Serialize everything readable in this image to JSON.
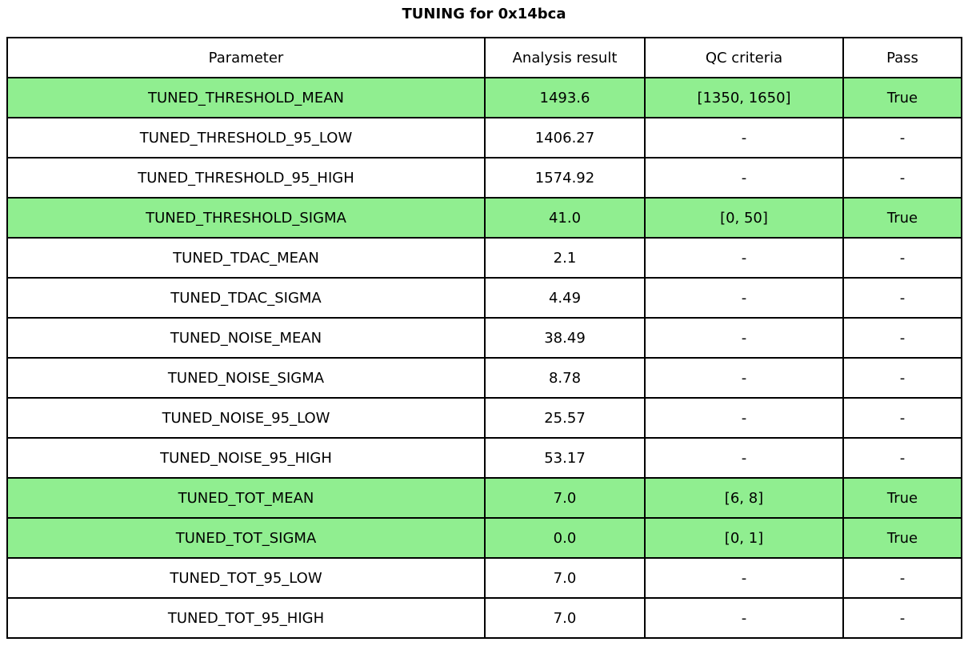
{
  "title": "TUNING for 0x14bca",
  "colors": {
    "highlight_row": "#90EE90",
    "border": "#000000",
    "background": "#ffffff",
    "text": "#000000"
  },
  "chart_data": {
    "type": "table",
    "title": "TUNING for 0x14bca",
    "columns": [
      "Parameter",
      "Analysis result",
      "QC criteria",
      "Pass"
    ],
    "rows": [
      {
        "param": "TUNED_THRESHOLD_MEAN",
        "result": "1493.6",
        "qc": "[1350, 1650]",
        "pass": "True",
        "highlight": true
      },
      {
        "param": "TUNED_THRESHOLD_95_LOW",
        "result": "1406.27",
        "qc": "-",
        "pass": "-",
        "highlight": false
      },
      {
        "param": "TUNED_THRESHOLD_95_HIGH",
        "result": "1574.92",
        "qc": "-",
        "pass": "-",
        "highlight": false
      },
      {
        "param": "TUNED_THRESHOLD_SIGMA",
        "result": "41.0",
        "qc": "[0, 50]",
        "pass": "True",
        "highlight": true
      },
      {
        "param": "TUNED_TDAC_MEAN",
        "result": "2.1",
        "qc": "-",
        "pass": "-",
        "highlight": false
      },
      {
        "param": "TUNED_TDAC_SIGMA",
        "result": "4.49",
        "qc": "-",
        "pass": "-",
        "highlight": false
      },
      {
        "param": "TUNED_NOISE_MEAN",
        "result": "38.49",
        "qc": "-",
        "pass": "-",
        "highlight": false
      },
      {
        "param": "TUNED_NOISE_SIGMA",
        "result": "8.78",
        "qc": "-",
        "pass": "-",
        "highlight": false
      },
      {
        "param": "TUNED_NOISE_95_LOW",
        "result": "25.57",
        "qc": "-",
        "pass": "-",
        "highlight": false
      },
      {
        "param": "TUNED_NOISE_95_HIGH",
        "result": "53.17",
        "qc": "-",
        "pass": "-",
        "highlight": false
      },
      {
        "param": "TUNED_TOT_MEAN",
        "result": "7.0",
        "qc": "[6, 8]",
        "pass": "True",
        "highlight": true
      },
      {
        "param": "TUNED_TOT_SIGMA",
        "result": "0.0",
        "qc": "[0, 1]",
        "pass": "True",
        "highlight": true
      },
      {
        "param": "TUNED_TOT_95_LOW",
        "result": "7.0",
        "qc": "-",
        "pass": "-",
        "highlight": false
      },
      {
        "param": "TUNED_TOT_95_HIGH",
        "result": "7.0",
        "qc": "-",
        "pass": "-",
        "highlight": false
      }
    ],
    "legend_position": "none",
    "grid": true
  }
}
